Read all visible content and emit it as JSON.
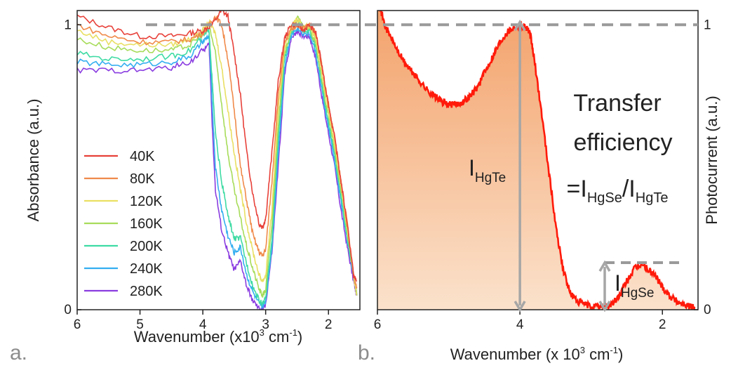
{
  "panels": {
    "a_label": "a.",
    "b_label": "b."
  },
  "chart_data": [
    {
      "type": "line",
      "panel": "a.",
      "xlabel_main": "Wavenumber (x10",
      "xlabel_sup": "3",
      "xlabel_unit": " cm",
      "xlabel_sup2": "-1",
      "xlabel_end": ")",
      "ylabel": "Absorbance (a.u.)",
      "xlim": [
        6,
        1.5
      ],
      "ylim": [
        0,
        1.05
      ],
      "xticks": [
        "6",
        "5",
        "4",
        "3",
        "2"
      ],
      "yticks": [
        "0",
        "1"
      ],
      "legend_position": "bottom-left",
      "colors": [
        "#e8413a",
        "#f08a4a",
        "#e9df63",
        "#a7dc5a",
        "#3edba4",
        "#34aef0",
        "#8a3de0"
      ],
      "series": [
        {
          "name": "40K",
          "x": [
            6,
            5.5,
            5,
            4.5,
            4.2,
            4,
            3.85,
            3.7,
            3.6,
            3.5,
            3.4,
            3.3,
            3.2,
            3.1,
            3.05,
            3,
            2.9,
            2.8,
            2.7,
            2.6,
            2.5,
            2.4,
            2.3,
            2.2,
            2.1,
            2,
            1.9,
            1.8,
            1.7,
            1.6,
            1.55
          ],
          "y": [
            1.03,
            0.99,
            0.96,
            0.96,
            0.97,
            0.98,
            1.0,
            1.05,
            1.03,
            0.9,
            0.75,
            0.55,
            0.4,
            0.3,
            0.29,
            0.32,
            0.55,
            0.8,
            0.95,
            1.0,
            1.0,
            0.98,
            1.0,
            0.97,
            0.85,
            0.72,
            0.6,
            0.45,
            0.3,
            0.12,
            0.1
          ]
        },
        {
          "name": "80K",
          "x": [
            6,
            5.5,
            5,
            4.5,
            4.2,
            4,
            3.9,
            3.8,
            3.7,
            3.6,
            3.5,
            3.4,
            3.3,
            3.2,
            3.1,
            3.05,
            3,
            2.9,
            2.8,
            2.7,
            2.6,
            2.5,
            2.4,
            2.3,
            2.2,
            2.1,
            2,
            1.9,
            1.8,
            1.7,
            1.6,
            1.55
          ],
          "y": [
            1.0,
            0.96,
            0.94,
            0.94,
            0.95,
            0.97,
            1.0,
            1.03,
            1.0,
            0.88,
            0.7,
            0.5,
            0.38,
            0.26,
            0.2,
            0.19,
            0.21,
            0.45,
            0.75,
            0.93,
            0.98,
            1.0,
            0.99,
            1.0,
            0.97,
            0.85,
            0.72,
            0.6,
            0.45,
            0.3,
            0.12,
            0.08
          ]
        },
        {
          "name": "120K",
          "x": [
            6,
            5.5,
            5,
            4.5,
            4.2,
            4,
            3.9,
            3.8,
            3.7,
            3.6,
            3.5,
            3.4,
            3.3,
            3.2,
            3.1,
            3.05,
            3,
            2.9,
            2.8,
            2.7,
            2.6,
            2.5,
            2.4,
            2.3,
            2.2,
            2.1,
            2,
            1.9,
            1.8,
            1.7,
            1.6,
            1.55
          ],
          "y": [
            0.98,
            0.94,
            0.93,
            0.93,
            0.95,
            0.98,
            1.01,
            0.97,
            0.85,
            0.7,
            0.55,
            0.42,
            0.3,
            0.2,
            0.12,
            0.1,
            0.12,
            0.35,
            0.7,
            0.92,
            0.99,
            1.02,
            0.99,
            1.0,
            0.95,
            0.82,
            0.7,
            0.58,
            0.44,
            0.28,
            0.12,
            0.05
          ]
        },
        {
          "name": "160K",
          "x": [
            6,
            5.5,
            5,
            4.5,
            4.2,
            4,
            3.9,
            3.8,
            3.7,
            3.6,
            3.5,
            3.4,
            3.3,
            3.2,
            3.1,
            3.05,
            3,
            2.9,
            2.8,
            2.7,
            2.6,
            2.5,
            2.4,
            2.3,
            2.2,
            2.1,
            2,
            1.9,
            1.8,
            1.7,
            1.6,
            1.55
          ],
          "y": [
            0.95,
            0.92,
            0.91,
            0.91,
            0.93,
            0.97,
            1.0,
            0.9,
            0.72,
            0.55,
            0.42,
            0.32,
            0.22,
            0.14,
            0.07,
            0.05,
            0.07,
            0.3,
            0.65,
            0.9,
            0.98,
            1.03,
            0.99,
            0.99,
            0.93,
            0.8,
            0.68,
            0.56,
            0.42,
            0.27,
            0.12,
            0.05
          ]
        },
        {
          "name": "200K",
          "x": [
            6,
            5.5,
            5,
            4.5,
            4.2,
            4,
            3.9,
            3.85,
            3.8,
            3.7,
            3.6,
            3.5,
            3.4,
            3.3,
            3.2,
            3.1,
            3.05,
            3,
            2.9,
            2.8,
            2.7,
            2.6,
            2.5,
            2.4,
            2.3,
            2.2,
            2.1,
            2,
            1.9,
            1.8,
            1.7,
            1.6,
            1.55
          ],
          "y": [
            0.9,
            0.88,
            0.88,
            0.89,
            0.91,
            0.96,
            0.98,
            0.8,
            0.62,
            0.45,
            0.33,
            0.25,
            0.25,
            0.16,
            0.08,
            0.03,
            0.02,
            0.04,
            0.25,
            0.6,
            0.88,
            0.97,
            1.01,
            0.98,
            0.98,
            0.92,
            0.78,
            0.66,
            0.54,
            0.4,
            0.25,
            0.12,
            0.05
          ]
        },
        {
          "name": "240K",
          "x": [
            6,
            5.5,
            5,
            4.5,
            4.2,
            4,
            3.9,
            3.85,
            3.8,
            3.7,
            3.6,
            3.5,
            3.4,
            3.3,
            3.2,
            3.1,
            3.05,
            3,
            2.9,
            2.8,
            2.7,
            2.6,
            2.5,
            2.4,
            2.3,
            2.2,
            2.1,
            2,
            1.9,
            1.8,
            1.7,
            1.6,
            1.55
          ],
          "y": [
            0.87,
            0.86,
            0.86,
            0.87,
            0.89,
            0.94,
            0.96,
            0.72,
            0.5,
            0.35,
            0.26,
            0.2,
            0.22,
            0.12,
            0.06,
            0.02,
            0.01,
            0.03,
            0.22,
            0.55,
            0.85,
            0.96,
            0.99,
            0.97,
            0.97,
            0.9,
            0.76,
            0.64,
            0.52,
            0.38,
            0.24,
            0.12,
            0.05
          ]
        },
        {
          "name": "280K",
          "x": [
            6,
            5.5,
            5,
            4.5,
            4.2,
            4,
            3.9,
            3.85,
            3.8,
            3.7,
            3.6,
            3.5,
            3.4,
            3.3,
            3.2,
            3.1,
            3.05,
            3,
            2.9,
            2.8,
            2.7,
            2.6,
            2.5,
            2.4,
            2.3,
            2.2,
            2.1,
            2,
            1.9,
            1.8,
            1.7,
            1.6,
            1.55
          ],
          "y": [
            0.84,
            0.84,
            0.84,
            0.85,
            0.87,
            0.91,
            0.93,
            0.65,
            0.42,
            0.28,
            0.2,
            0.14,
            0.17,
            0.08,
            0.03,
            0.0,
            0.0,
            0.02,
            0.2,
            0.5,
            0.82,
            0.95,
            0.98,
            0.96,
            0.96,
            0.88,
            0.74,
            0.62,
            0.5,
            0.35,
            0.22,
            0.1,
            0.05
          ]
        }
      ]
    },
    {
      "type": "area",
      "panel": "b.",
      "xlabel_main": "Wavenumber (x 10",
      "xlabel_sup": "3",
      "xlabel_unit": " cm",
      "xlabel_sup2": "-1",
      "xlabel_end": ")",
      "ylabel": "Photocurrent (a.u.)",
      "xlim": [
        6,
        1.5
      ],
      "ylim": [
        0,
        1.05
      ],
      "xticks": [
        "6",
        "4",
        "2"
      ],
      "yticks": [
        "0",
        "1"
      ],
      "color": "#ff1a0a",
      "fill_top": "#f3a068",
      "fill_bottom": "#fbe2cc",
      "series": [
        {
          "x": [
            6,
            5.9,
            5.8,
            5.7,
            5.6,
            5.5,
            5.4,
            5.3,
            5.2,
            5.1,
            5.0,
            4.9,
            4.8,
            4.7,
            4.6,
            4.5,
            4.4,
            4.3,
            4.2,
            4.1,
            4.0,
            3.9,
            3.85,
            3.8,
            3.7,
            3.6,
            3.5,
            3.4,
            3.3,
            3.2,
            3.1,
            3.0,
            2.9,
            2.8,
            2.7,
            2.6,
            2.5,
            2.4,
            2.3,
            2.2,
            2.1,
            2.0,
            1.9,
            1.8,
            1.7,
            1.6,
            1.55
          ],
          "y": [
            1.1,
            1.0,
            0.95,
            0.9,
            0.86,
            0.83,
            0.8,
            0.77,
            0.75,
            0.73,
            0.72,
            0.72,
            0.73,
            0.75,
            0.78,
            0.83,
            0.88,
            0.93,
            0.97,
            0.99,
            1.0,
            0.99,
            0.96,
            0.88,
            0.7,
            0.5,
            0.3,
            0.15,
            0.06,
            0.03,
            0.02,
            0.01,
            0.01,
            0.01,
            0.02,
            0.05,
            0.1,
            0.14,
            0.16,
            0.14,
            0.12,
            0.08,
            0.05,
            0.03,
            0.02,
            0.01,
            0.01
          ]
        }
      ],
      "reference_levels": [
        1.0,
        0.165
      ],
      "annotations": {
        "title_line1": "Transfer",
        "title_line2": "efficiency",
        "ratio_eq": "=I",
        "ratio_num_sub": "HgSe",
        "ratio_slash": "/I",
        "ratio_den_sub": "HgTe",
        "hgte_I": "I",
        "hgte_sub": "HgTe",
        "hgse_I": "I",
        "hgse_sub": "HgSe"
      }
    }
  ]
}
